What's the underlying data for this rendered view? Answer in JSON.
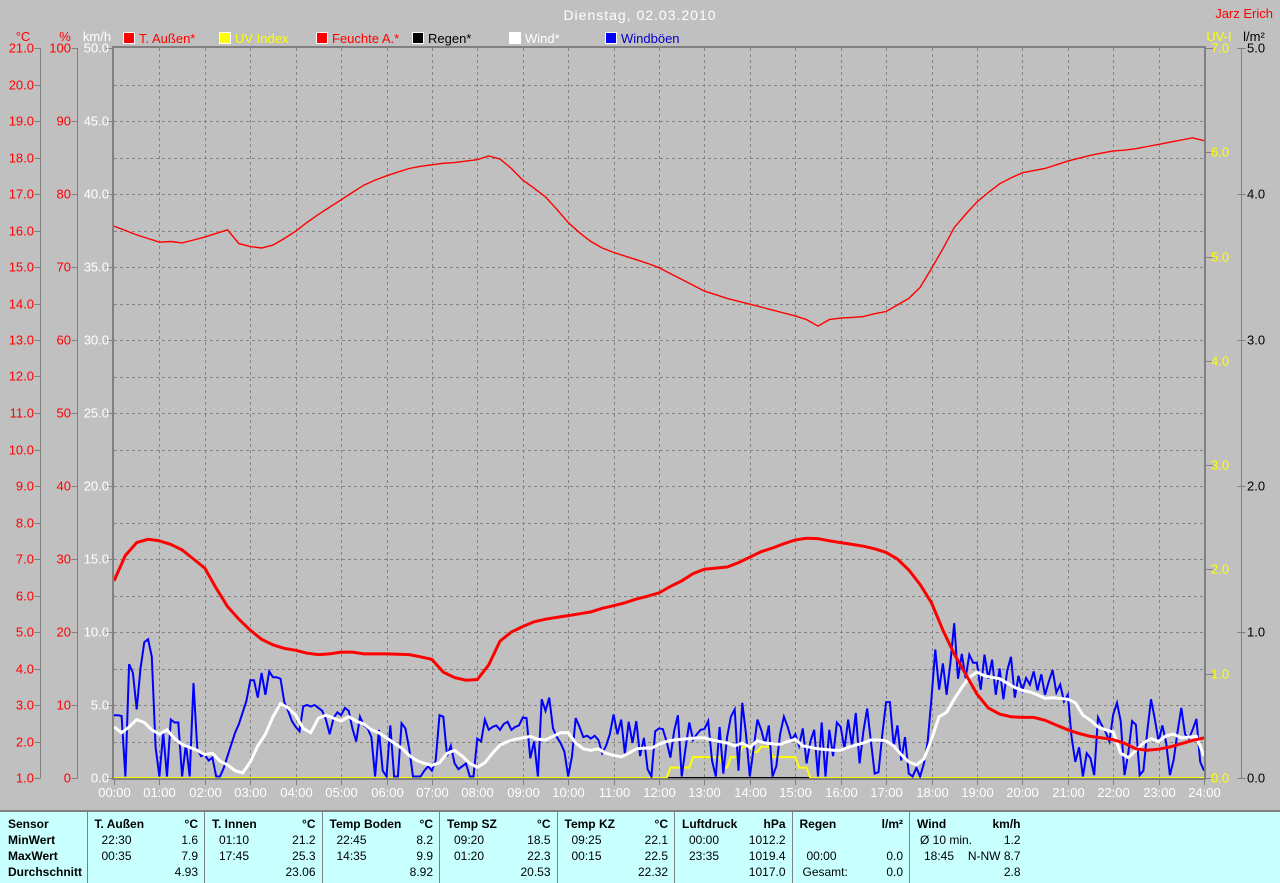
{
  "window": {
    "title": "Dienstag, 02.03.2010",
    "watermark": "Jarz Erich",
    "colors": {
      "background": "#c0c0c0",
      "grid": "#848484",
      "frame": "#808080",
      "table_background": "#c8ffff",
      "red": "#ff0000",
      "yellow": "#ffff00",
      "blue": "#0000ff",
      "white": "#ffffff",
      "black": "#000000"
    }
  },
  "legend": {
    "items": [
      {
        "label": "T. Außen*",
        "swatch": "#ff0000",
        "text_color": "#ff0000"
      },
      {
        "label": "UV Index",
        "swatch": "#ffff00",
        "text_color": "#ffff00"
      },
      {
        "label": "Feuchte A.*",
        "swatch": "#ff0000",
        "text_color": "#ff0000"
      },
      {
        "label": "Regen*",
        "swatch": "#000000",
        "text_color": "#000000"
      },
      {
        "label": "Wind*",
        "swatch": "#ffffff",
        "text_color": "#ffffff"
      },
      {
        "label": "Windböen",
        "swatch": "#0000ff",
        "text_color": "#0000cc"
      }
    ]
  },
  "axes": {
    "left": [
      {
        "name": "temp",
        "unit": "°C",
        "color": "#ff0000",
        "min": 1,
        "max": 21,
        "step": 1,
        "decimals": 1
      },
      {
        "name": "humidity",
        "unit": "%",
        "color": "#ff0000",
        "min": 0,
        "max": 100,
        "step": 10,
        "decimals": 0
      },
      {
        "name": "wind",
        "unit": "km/h",
        "color": "#ffffff",
        "min": 0,
        "max": 50,
        "step": 5,
        "decimals": 1
      }
    ],
    "right": [
      {
        "name": "uv",
        "unit": "UV-I",
        "color": "#ffff00",
        "min": 0,
        "max": 7,
        "step": 1,
        "decimals": 1
      },
      {
        "name": "rain",
        "unit": "l/m²",
        "color": "#000000",
        "min": 0,
        "max": 5,
        "step": 1,
        "decimals": 1
      }
    ],
    "x_labels": [
      "00:00",
      "01:00",
      "02:00",
      "03:00",
      "04:00",
      "05:00",
      "06:00",
      "07:00",
      "08:00",
      "09:00",
      "10:00",
      "11:00",
      "12:00",
      "13:00",
      "14:00",
      "15:00",
      "16:00",
      "17:00",
      "18:00",
      "19:00",
      "20:00",
      "21:00",
      "22:00",
      "23:00",
      "24:00"
    ]
  },
  "chart_data": {
    "type": "line",
    "title": "Dienstag, 02.03.2010",
    "x_unit": "hour_of_day",
    "x_range": [
      0,
      24
    ],
    "grid": "dashed",
    "series": [
      {
        "name": "Feuchte A.",
        "axis": "humidity",
        "unit": "%",
        "color": "#ff0000",
        "width": 1.4,
        "interval_min": 15,
        "values": [
          75.6,
          75.0,
          74.4,
          73.9,
          73.4,
          73.5,
          73.3,
          73.7,
          74.1,
          74.6,
          75.1,
          73.2,
          72.8,
          72.6,
          73.0,
          73.9,
          74.9,
          76.1,
          77.2,
          78.2,
          79.2,
          80.2,
          81.2,
          81.9,
          82.5,
          83.0,
          83.5,
          83.8,
          84.0,
          84.2,
          84.3,
          84.5,
          84.7,
          85.2,
          84.8,
          83.5,
          81.9,
          80.8,
          79.6,
          77.9,
          76.1,
          74.7,
          73.5,
          72.6,
          72.0,
          71.5,
          71.0,
          70.5,
          69.9,
          69.1,
          68.3,
          67.5,
          66.7,
          66.2,
          65.7,
          65.3,
          64.9,
          64.5,
          64.1,
          63.7,
          63.3,
          62.8,
          61.9,
          62.8,
          63.0,
          63.1,
          63.2,
          63.6,
          63.9,
          64.8,
          65.7,
          67.2,
          69.8,
          72.5,
          75.4,
          77.2,
          78.9,
          80.2,
          81.4,
          82.2,
          82.9,
          83.2,
          83.5,
          84.0,
          84.5,
          84.9,
          85.3,
          85.6,
          85.9,
          86.0,
          86.2,
          86.5,
          86.8,
          87.1,
          87.4,
          87.7,
          87.3
        ]
      },
      {
        "name": "Regen",
        "axis": "rain",
        "unit": "l/m²",
        "color": "#000000",
        "width": 2,
        "interval_min": 1440,
        "values": [
          0.0,
          0.0
        ]
      },
      {
        "name": "UV Index",
        "axis": "uv",
        "unit": "UV-I",
        "color": "#ffff00",
        "width": 2,
        "interval_min": 5,
        "values": [
          0.0,
          0.0,
          0.0,
          0.0,
          0.0,
          0.0,
          0.0,
          0.0,
          0.0,
          0.0,
          0.0,
          0.0,
          0.0,
          0.0,
          0.0,
          0.0,
          0.0,
          0.0,
          0.0,
          0.0,
          0.0,
          0.0,
          0.0,
          0.0,
          0.0,
          0.0,
          0.0,
          0.0,
          0.0,
          0.0,
          0.0,
          0.0,
          0.0,
          0.0,
          0.0,
          0.0,
          0.0,
          0.0,
          0.0,
          0.0,
          0.0,
          0.0,
          0.0,
          0.0,
          0.0,
          0.0,
          0.0,
          0.0,
          0.0,
          0.0,
          0.0,
          0.0,
          0.0,
          0.0,
          0.0,
          0.0,
          0.0,
          0.0,
          0.0,
          0.0,
          0.0,
          0.0,
          0.0,
          0.0,
          0.0,
          0.0,
          0.0,
          0.0,
          0.0,
          0.0,
          0.0,
          0.0,
          0.0,
          0.0,
          0.0,
          0.0,
          0.0,
          0.0,
          0.0,
          0.0,
          0.0,
          0.0,
          0.0,
          0.0,
          0.0,
          0.0,
          0.0,
          0.0,
          0.0,
          0.0,
          0.0,
          0.0,
          0.0,
          0.0,
          0.0,
          0.0,
          0.0,
          0.0,
          0.0,
          0.0,
          0.0,
          0.0,
          0.0,
          0.0,
          0.0,
          0.0,
          0.0,
          0.0,
          0.0,
          0.0,
          0.0,
          0.0,
          0.0,
          0.0,
          0.0,
          0.0,
          0.0,
          0.0,
          0.0,
          0.0,
          0.0,
          0.0,
          0.0,
          0.0,
          0.0,
          0.0,
          0.0,
          0.0,
          0.0,
          0.0,
          0.0,
          0.0,
          0.0,
          0.0,
          0.0,
          0.0,
          0.0,
          0.0,
          0.0,
          0.0,
          0.0,
          0.0,
          0.0,
          0.0,
          0.0,
          0.0,
          0.0,
          0.1,
          0.1,
          0.1,
          0.1,
          0.1,
          0.1,
          0.2,
          0.2,
          0.2,
          0.2,
          0.2,
          0.2,
          0.2,
          0.2,
          0.1,
          0.1,
          0.2,
          0.2,
          0.2,
          0.3,
          0.3,
          0.3,
          0.25,
          0.25,
          0.3,
          0.3,
          0.3,
          0.2,
          0.2,
          0.2,
          0.2,
          0.2,
          0.2,
          0.2,
          0.1,
          0.1,
          0.1,
          0.0,
          0.0,
          0.0,
          0.0,
          0.0,
          0.0,
          0.0,
          0.0,
          0.0,
          0.0,
          0.0,
          0.0,
          0.0,
          0.0,
          0.0,
          0.0,
          0.0,
          0.0,
          0.0,
          0.0,
          0.0,
          0.0,
          0.0,
          0.0,
          0.0,
          0.0,
          0.0,
          0.0,
          0.0,
          0.0,
          0.0,
          0.0,
          0.0,
          0.0,
          0.0,
          0.0,
          0.0,
          0.0,
          0.0,
          0.0,
          0.0,
          0.0,
          0.0,
          0.0,
          0.0,
          0.0,
          0.0,
          0.0,
          0.0,
          0.0,
          0.0,
          0.0,
          0.0,
          0.0,
          0.0,
          0.0,
          0.0,
          0.0,
          0.0,
          0.0,
          0.0,
          0.0,
          0.0,
          0.0,
          0.0,
          0.0,
          0.0,
          0.0,
          0.0,
          0.0,
          0.0,
          0.0,
          0.0,
          0.0,
          0.0,
          0.0,
          0.0,
          0.0,
          0.0,
          0.0,
          0.0,
          0.0,
          0.0,
          0.0,
          0.0,
          0.0,
          0.0,
          0.0,
          0.0,
          0.0,
          0.0,
          0.0,
          0.0,
          0.0,
          0.0,
          0.0,
          0.0,
          0.0,
          0.0,
          0.0,
          0.0,
          0.0,
          0.0,
          0.0,
          0.0
        ]
      },
      {
        "name": "Windböen",
        "axis": "wind",
        "unit": "km/h",
        "color": "#0000ff",
        "width": 2,
        "interval_min": 5,
        "values": [
          4.3,
          4.3,
          4.25,
          0.1,
          7.8,
          7.2,
          4.7,
          7.5,
          9.3,
          9.5,
          8.3,
          2.1,
          0.1,
          3.1,
          0.1,
          4.0,
          3.8,
          3.8,
          0.1,
          2.3,
          0.1,
          6.5,
          2.0,
          1.5,
          1.6,
          1.2,
          1.4,
          0.1,
          0.1,
          0.7,
          1.5,
          2.3,
          3.1,
          3.7,
          4.5,
          5.3,
          6.7,
          6.7,
          5.5,
          7.2,
          5.7,
          7.3,
          6.9,
          6.9,
          6.8,
          5.2,
          4.6,
          3.9,
          3.5,
          3.2,
          4.9,
          5.0,
          4.9,
          5.0,
          4.8,
          4.6,
          4.0,
          3.0,
          4.1,
          4.5,
          4.3,
          4.8,
          4.6,
          3.4,
          2.5,
          4.2,
          3.6,
          3.4,
          2.8,
          0.1,
          3.3,
          0.5,
          0.1,
          3.6,
          0.1,
          0.1,
          3.75,
          3.4,
          2.0,
          0.1,
          0.1,
          0.1,
          0.5,
          0.8,
          0.5,
          1.2,
          4.3,
          4.2,
          1.5,
          2.2,
          1.0,
          0.6,
          0.8,
          1.0,
          0.1,
          0.1,
          2.7,
          2.5,
          4.0,
          3.3,
          3.5,
          3.6,
          3.3,
          3.7,
          3.85,
          3.3,
          3.5,
          3.6,
          4.15,
          4.1,
          1.35,
          2.5,
          0.1,
          5.4,
          4.6,
          5.5,
          3.4,
          2.8,
          2.4,
          1.8,
          0.1,
          1.5,
          4.1,
          3.5,
          2.8,
          2.9,
          2.7,
          2.9,
          2.6,
          1.7,
          2.2,
          3.0,
          4.35,
          3.0,
          4.0,
          1.65,
          3.85,
          2.4,
          3.9,
          1.5,
          2.75,
          0.6,
          0.1,
          3.2,
          3.4,
          3.35,
          2.5,
          1.4,
          3.2,
          4.3,
          0.1,
          2.0,
          3.8,
          2.6,
          3.0,
          3.3,
          3.35,
          3.9,
          1.2,
          0.1,
          3.5,
          0.3,
          2.8,
          4.2,
          4.7,
          0.5,
          5.15,
          3.0,
          0.1,
          2.0,
          4.0,
          3.3,
          2.3,
          3.6,
          0.1,
          0.8,
          3.0,
          4.2,
          3.5,
          2.6,
          3.0,
          2.2,
          3.4,
          1.0,
          2.5,
          3.3,
          0.1,
          3.8,
          0.1,
          3.3,
          1.5,
          3.8,
          3.5,
          2.0,
          4.0,
          2.2,
          4.45,
          1.0,
          3.2,
          4.75,
          2.5,
          0.3,
          0.4,
          3.0,
          5.2,
          5.2,
          2.2,
          3.6,
          1.2,
          2.8,
          0.3,
          0.1,
          0.7,
          0.1,
          1.0,
          2.5,
          5.5,
          8.8,
          6.05,
          7.85,
          5.7,
          7.9,
          10.6,
          6.8,
          8.5,
          6.85,
          8.45,
          7.9,
          7.9,
          6.05,
          8.45,
          6.8,
          8.1,
          5.7,
          7.5,
          5.4,
          7.35,
          8.3,
          5.5,
          7.0,
          6.0,
          6.85,
          6.4,
          7.3,
          6.0,
          7.1,
          5.7,
          6.6,
          7.4,
          5.85,
          6.4,
          5.25,
          5.7,
          2.85,
          1.1,
          2.1,
          0.1,
          1.7,
          1.35,
          0.2,
          4.15,
          3.6,
          3.15,
          2.5,
          4.35,
          5.15,
          3.9,
          0.2,
          1.7,
          3.9,
          3.65,
          0.2,
          0.5,
          3.15,
          5.4,
          4.05,
          2.5,
          3.6,
          2.4,
          0.2,
          1.25,
          3.15,
          4.8,
          3.0,
          2.7,
          3.3,
          4.05,
          1.1,
          0.5
        ]
      },
      {
        "name": "Wind",
        "axis": "wind",
        "unit": "km/h",
        "color": "#ffffff",
        "width": 3,
        "interval_min": 10,
        "values": [
          3.5,
          3.1,
          3.5,
          4.0,
          3.8,
          3.3,
          3.0,
          3.3,
          2.7,
          2.3,
          2.1,
          1.9,
          1.6,
          1.7,
          1.15,
          0.9,
          0.5,
          0.35,
          1.1,
          2.2,
          3.0,
          4.2,
          5.1,
          4.8,
          4.3,
          3.4,
          3.1,
          4.1,
          4.3,
          4.1,
          3.9,
          4.2,
          3.9,
          3.7,
          3.3,
          3.1,
          2.75,
          2.4,
          2.05,
          1.55,
          1.2,
          1.0,
          0.87,
          1.05,
          1.7,
          1.9,
          1.5,
          1.0,
          0.73,
          1.05,
          1.7,
          2.25,
          2.5,
          2.65,
          2.75,
          2.85,
          2.65,
          2.6,
          2.85,
          3.1,
          3.1,
          2.4,
          2.0,
          1.9,
          2.0,
          1.7,
          1.55,
          1.45,
          1.7,
          2.0,
          2.05,
          2.05,
          2.3,
          2.5,
          2.6,
          2.65,
          2.7,
          2.75,
          2.75,
          2.6,
          2.5,
          2.4,
          2.2,
          2.4,
          2.1,
          2.55,
          2.4,
          2.35,
          2.3,
          2.5,
          2.65,
          2.2,
          2.1,
          2.0,
          1.95,
          1.9,
          1.9,
          2.1,
          2.25,
          2.4,
          2.6,
          2.6,
          2.55,
          2.2,
          1.6,
          1.1,
          0.9,
          1.3,
          2.65,
          4.2,
          4.5,
          5.4,
          6.2,
          6.9,
          7.25,
          7.0,
          6.9,
          6.8,
          6.5,
          6.2,
          6.0,
          5.9,
          5.7,
          5.45,
          5.5,
          5.45,
          5.4,
          5.15,
          4.3,
          3.95,
          3.5,
          3.3,
          3.15,
          1.7,
          1.4,
          1.9,
          2.4,
          2.7,
          2.5,
          2.9,
          3.0,
          2.75,
          2.8,
          2.85,
          1.5
        ]
      },
      {
        "name": "T. Außen",
        "axis": "temp",
        "unit": "°C",
        "color": "#ff0000",
        "width": 3,
        "interval_min": 15,
        "values": [
          6.4,
          7.1,
          7.45,
          7.54,
          7.5,
          7.4,
          7.25,
          7.0,
          6.75,
          6.2,
          5.7,
          5.35,
          5.05,
          4.8,
          4.65,
          4.55,
          4.5,
          4.42,
          4.38,
          4.4,
          4.45,
          4.45,
          4.4,
          4.4,
          4.4,
          4.39,
          4.38,
          4.32,
          4.25,
          3.9,
          3.75,
          3.68,
          3.7,
          4.1,
          4.75,
          5.0,
          5.15,
          5.28,
          5.35,
          5.4,
          5.45,
          5.5,
          5.55,
          5.65,
          5.72,
          5.8,
          5.9,
          5.98,
          6.07,
          6.25,
          6.4,
          6.6,
          6.72,
          6.75,
          6.78,
          6.9,
          7.05,
          7.2,
          7.3,
          7.42,
          7.52,
          7.57,
          7.56,
          7.5,
          7.45,
          7.4,
          7.35,
          7.28,
          7.18,
          7.0,
          6.7,
          6.3,
          5.8,
          5.05,
          4.4,
          3.85,
          3.3,
          2.92,
          2.75,
          2.68,
          2.66,
          2.66,
          2.58,
          2.45,
          2.32,
          2.22,
          2.14,
          2.1,
          2.05,
          1.95,
          1.8,
          1.76,
          1.79,
          1.85,
          1.94,
          2.03,
          2.1
        ]
      }
    ]
  },
  "table": {
    "row_labels": [
      "Sensor",
      "MinWert",
      "MaxWert",
      "Durchschnitt"
    ],
    "columns": [
      {
        "label": "T. Außen",
        "unit": "°C",
        "min": {
          "t": "22:30",
          "v": "1.6"
        },
        "max": {
          "t": "00:35",
          "v": "7.9"
        },
        "avg": "4.93"
      },
      {
        "label": "T. Innen",
        "unit": "°C",
        "min": {
          "t": "01:10",
          "v": "21.2"
        },
        "max": {
          "t": "17:45",
          "v": "25.3"
        },
        "avg": "23.06"
      },
      {
        "label": "Temp Boden",
        "unit": "°C",
        "min": {
          "t": "22:45",
          "v": "8.2"
        },
        "max": {
          "t": "14:35",
          "v": "9.9"
        },
        "avg": "8.92"
      },
      {
        "label": "Temp SZ",
        "unit": "°C",
        "min": {
          "t": "09:20",
          "v": "18.5"
        },
        "max": {
          "t": "01:20",
          "v": "22.3"
        },
        "avg": "20.53"
      },
      {
        "label": "Temp KZ",
        "unit": "°C",
        "min": {
          "t": "09:25",
          "v": "22.1"
        },
        "max": {
          "t": "00:15",
          "v": "22.5"
        },
        "avg": "22.32"
      },
      {
        "label": "Luftdruck",
        "unit": "hPa",
        "min": {
          "t": "00:00",
          "v": "1012.2"
        },
        "max": {
          "t": "23:35",
          "v": "1019.4"
        },
        "avg": "1017.0"
      },
      {
        "label": "Regen",
        "unit": "l/m²",
        "min": {
          "t": "",
          "v": ""
        },
        "max": {
          "t": "00:00",
          "v": "0.0"
        },
        "avg": "0.0",
        "avg_label": "Gesamt:"
      },
      {
        "label": "Wind",
        "unit": "km/h",
        "min": {
          "t": "Ø 10 min.",
          "tl": true,
          "v": "1.2"
        },
        "max": {
          "t": "18:45",
          "v": "N-NW 8.7"
        },
        "avg": "2.8"
      }
    ]
  }
}
